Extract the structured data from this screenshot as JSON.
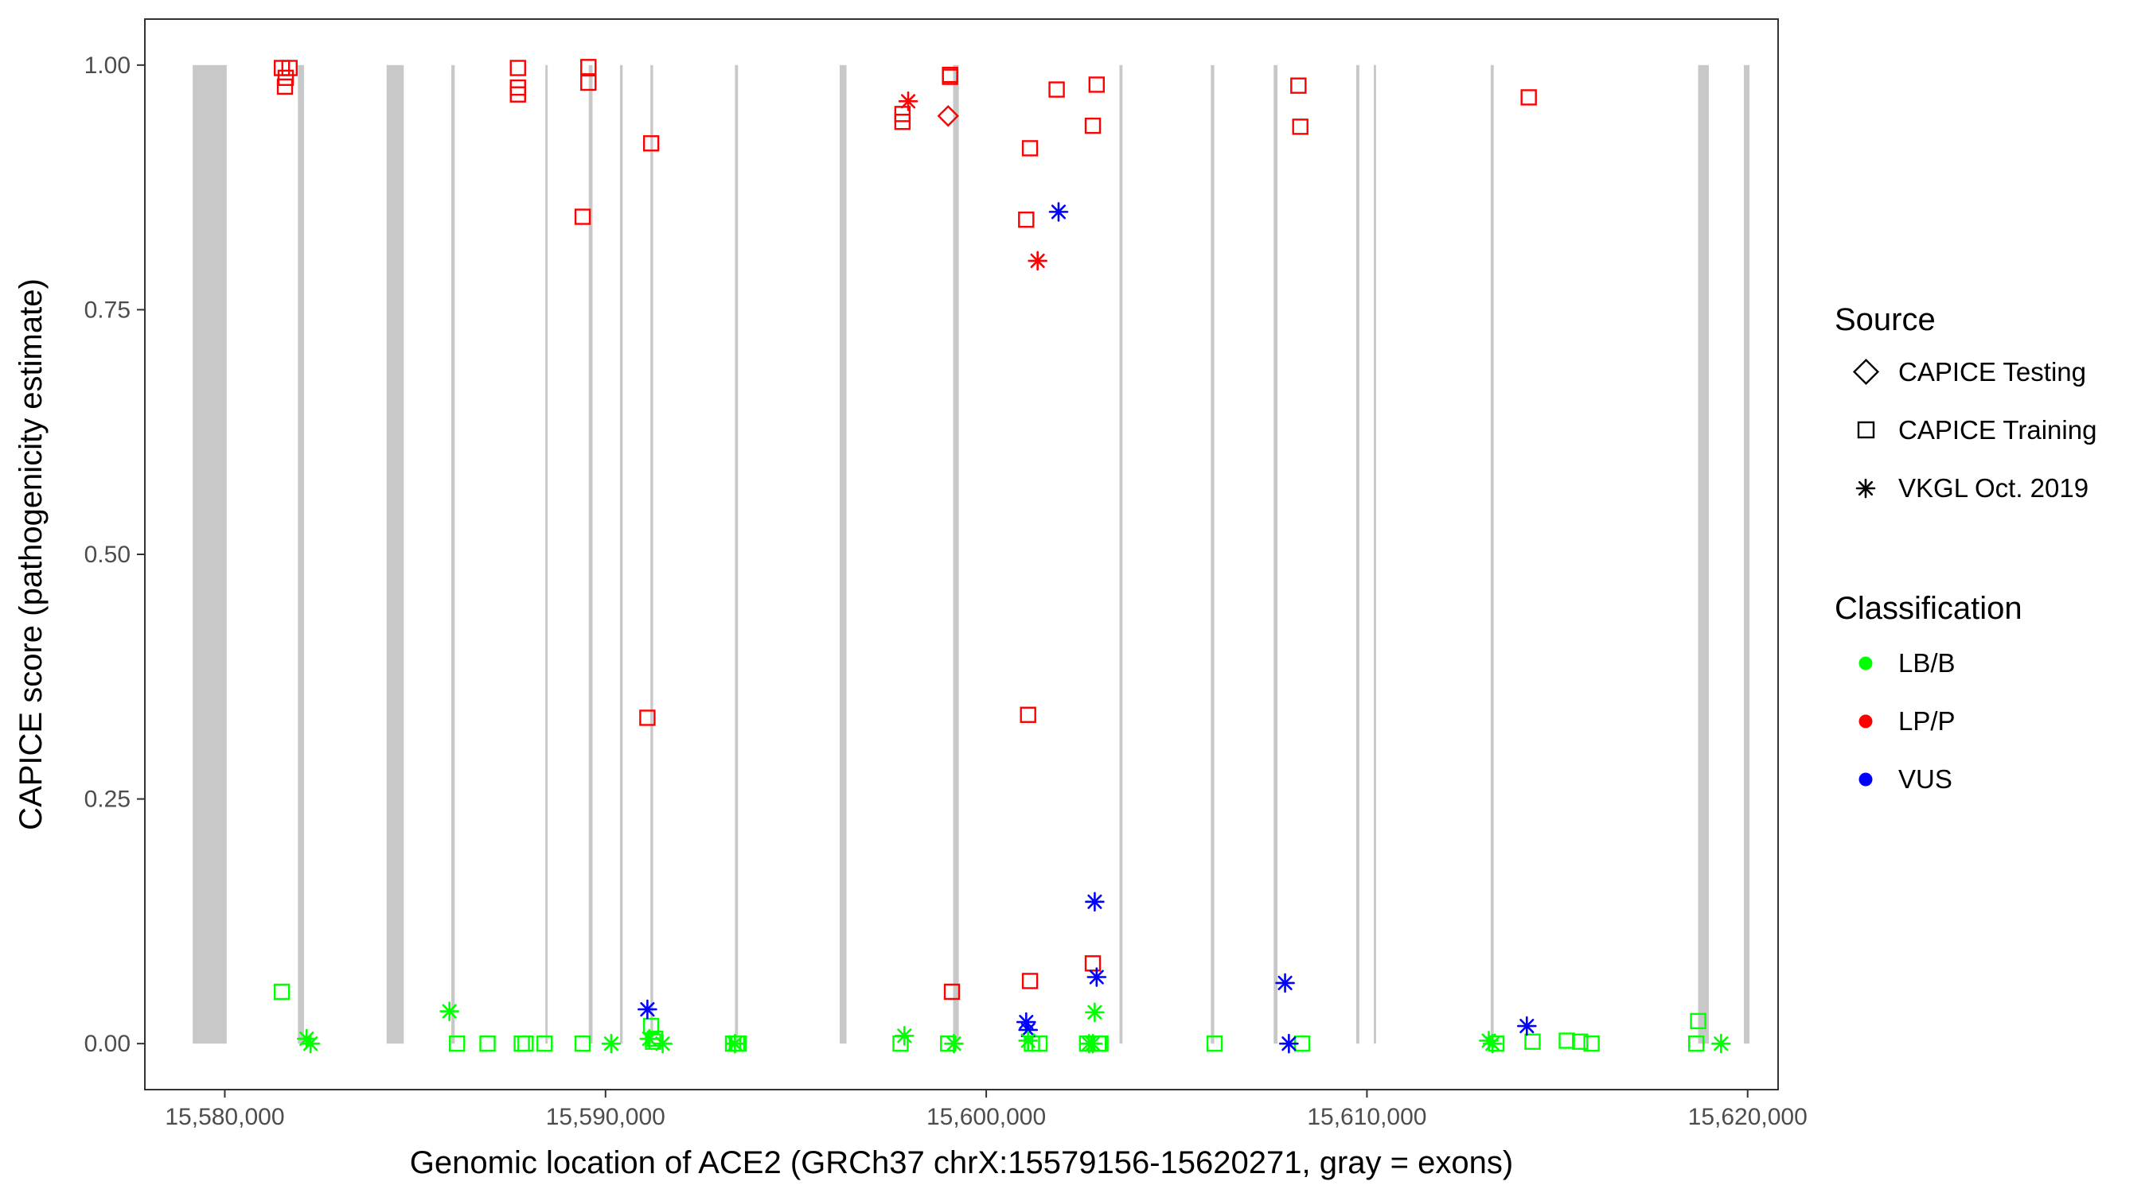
{
  "chart_data": {
    "type": "scatter",
    "xlabel": "Genomic location of ACE2 (GRCh37 chrX:15579156-15620271, gray = exons)",
    "ylabel": "CAPICE score (pathogenicity estimate)",
    "xlim": [
      15577900,
      15620800
    ],
    "ylim": [
      -0.047,
      1.047
    ],
    "x_ticks": [
      {
        "value": 15580000,
        "label": "15,580,000"
      },
      {
        "value": 15590000,
        "label": "15,590,000"
      },
      {
        "value": 15600000,
        "label": "15,600,000"
      },
      {
        "value": 15610000,
        "label": "15,610,000"
      },
      {
        "value": 15620000,
        "label": "15,620,000"
      }
    ],
    "y_ticks": [
      {
        "value": 0.0,
        "label": "0.00"
      },
      {
        "value": 0.25,
        "label": "0.25"
      },
      {
        "value": 0.5,
        "label": "0.50"
      },
      {
        "value": 0.75,
        "label": "0.75"
      },
      {
        "value": 1.0,
        "label": "1.00"
      }
    ],
    "exons": [
      [
        15579156,
        15580050
      ],
      [
        15581920,
        15582080
      ],
      [
        15584250,
        15584700
      ],
      [
        15585950,
        15586040
      ],
      [
        15588420,
        15588480
      ],
      [
        15589560,
        15589660
      ],
      [
        15590380,
        15590450
      ],
      [
        15591180,
        15591250
      ],
      [
        15593400,
        15593480
      ],
      [
        15596150,
        15596330
      ],
      [
        15599130,
        15599280
      ],
      [
        15603500,
        15603580
      ],
      [
        15605900,
        15605990
      ],
      [
        15607550,
        15607650
      ],
      [
        15609720,
        15609800
      ],
      [
        15610180,
        15610240
      ],
      [
        15613250,
        15613330
      ],
      [
        15618700,
        15618980
      ],
      [
        15619900,
        15620050
      ]
    ],
    "colors": {
      "LB/B": "#00FF00",
      "LP/P": "#FF0000",
      "VUS": "#0000FF"
    },
    "legend": {
      "position": "right",
      "source_title": "Source",
      "source_items": [
        {
          "label": "CAPICE Testing",
          "shape": "diamond"
        },
        {
          "label": "CAPICE Training",
          "shape": "square"
        },
        {
          "label": "VKGL Oct. 2019",
          "shape": "asterisk"
        }
      ],
      "class_title": "Classification",
      "class_items": [
        {
          "label": "LB/B",
          "color": "#00FF00"
        },
        {
          "label": "LP/P",
          "color": "#FF0000"
        },
        {
          "label": "VUS",
          "color": "#0000FF"
        }
      ]
    },
    "series": [
      {
        "name": "CAPICE Testing",
        "classification": "LP/P",
        "shape": "diamond",
        "points": [
          [
            15599000,
            0.948
          ]
        ]
      },
      {
        "name": "CAPICE Training",
        "classification": "LP/P",
        "shape": "square",
        "points": [
          [
            15581500,
            0.997
          ],
          [
            15581700,
            0.997
          ],
          [
            15581600,
            0.987
          ],
          [
            15581580,
            0.978
          ],
          [
            15587700,
            0.997
          ],
          [
            15587700,
            0.977
          ],
          [
            15587700,
            0.97
          ],
          [
            15589550,
            0.998
          ],
          [
            15589550,
            0.982
          ],
          [
            15589400,
            0.845
          ],
          [
            15591200,
            0.92
          ],
          [
            15591100,
            0.333
          ],
          [
            15597800,
            0.95
          ],
          [
            15597800,
            0.942
          ],
          [
            15599050,
            0.99
          ],
          [
            15599050,
            0.988
          ],
          [
            15599100,
            0.053
          ],
          [
            15601150,
            0.915
          ],
          [
            15601050,
            0.842
          ],
          [
            15601100,
            0.336
          ],
          [
            15601150,
            0.064
          ],
          [
            15601850,
            0.975
          ],
          [
            15602900,
            0.98
          ],
          [
            15602800,
            0.938
          ],
          [
            15602800,
            0.082
          ],
          [
            15608200,
            0.979
          ],
          [
            15608250,
            0.937
          ],
          [
            15614250,
            0.967
          ]
        ]
      },
      {
        "name": "CAPICE Training",
        "classification": "LB/B",
        "shape": "square",
        "points": [
          [
            15581500,
            0.053
          ],
          [
            15586100,
            0.0
          ],
          [
            15586900,
            0.0
          ],
          [
            15587800,
            0.0
          ],
          [
            15587900,
            0.0
          ],
          [
            15588400,
            0.0
          ],
          [
            15589400,
            0.0
          ],
          [
            15591200,
            0.018
          ],
          [
            15591300,
            0.005
          ],
          [
            15591250,
            0.002
          ],
          [
            15593350,
            0.0
          ],
          [
            15593500,
            0.0
          ],
          [
            15593450,
            0.0
          ],
          [
            15597750,
            0.0
          ],
          [
            15599000,
            0.0
          ],
          [
            15601200,
            0.0
          ],
          [
            15601400,
            0.0
          ],
          [
            15602650,
            0.0
          ],
          [
            15602950,
            0.0
          ],
          [
            15603000,
            0.0
          ],
          [
            15606000,
            0.0
          ],
          [
            15608300,
            0.0
          ],
          [
            15613400,
            0.0
          ],
          [
            15614350,
            0.002
          ],
          [
            15615250,
            0.003
          ],
          [
            15615600,
            0.002
          ],
          [
            15615900,
            0.0
          ],
          [
            15618700,
            0.023
          ],
          [
            15618650,
            0.0
          ]
        ]
      },
      {
        "name": "VKGL Oct. 2019",
        "classification": "LP/P",
        "shape": "asterisk",
        "points": [
          [
            15597950,
            0.963
          ],
          [
            15601350,
            0.8
          ]
        ]
      },
      {
        "name": "VKGL Oct. 2019",
        "classification": "VUS",
        "shape": "asterisk",
        "points": [
          [
            15591100,
            0.035
          ],
          [
            15601050,
            0.022
          ],
          [
            15601100,
            0.014
          ],
          [
            15601900,
            0.85
          ],
          [
            15602850,
            0.145
          ],
          [
            15602900,
            0.068
          ],
          [
            15607850,
            0.062
          ],
          [
            15607950,
            0.0
          ],
          [
            15614200,
            0.018
          ]
        ]
      },
      {
        "name": "VKGL Oct. 2019",
        "classification": "LB/B",
        "shape": "asterisk",
        "points": [
          [
            15582150,
            0.005
          ],
          [
            15582250,
            0.0
          ],
          [
            15585900,
            0.033
          ],
          [
            15590150,
            0.0
          ],
          [
            15591150,
            0.005
          ],
          [
            15591500,
            0.0
          ],
          [
            15593400,
            0.0
          ],
          [
            15597850,
            0.008
          ],
          [
            15599150,
            0.0
          ],
          [
            15601100,
            0.003
          ],
          [
            15602850,
            0.032
          ],
          [
            15602700,
            0.0
          ],
          [
            15602800,
            0.0
          ],
          [
            15613200,
            0.003
          ],
          [
            15613300,
            0.0
          ],
          [
            15619300,
            0.0
          ]
        ]
      }
    ]
  }
}
